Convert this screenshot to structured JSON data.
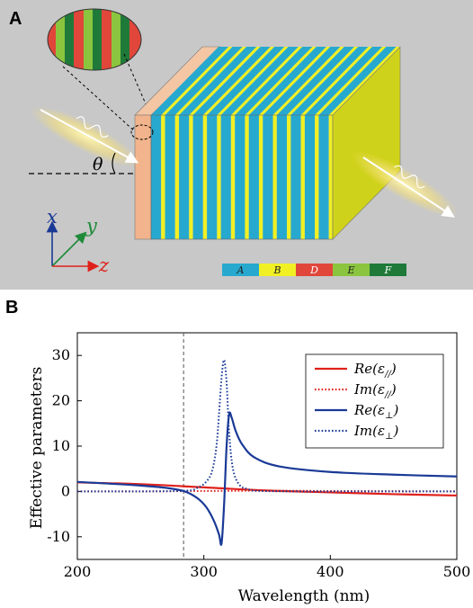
{
  "panel_a": {
    "label": "A",
    "angle_label": "θ",
    "axes": {
      "x": "x",
      "y": "y",
      "z": "z"
    },
    "legend": [
      {
        "label": "A",
        "color": "#27a9cf"
      },
      {
        "label": "B",
        "color": "#f1f024"
      },
      {
        "label": "D",
        "color": "#e0463a"
      },
      {
        "label": "E",
        "color": "#8bc53f"
      },
      {
        "label": "F",
        "color": "#1f7a3a"
      }
    ],
    "colors": {
      "background": "#c8c8c8",
      "layer_a": "#27a9cf",
      "layer_b": "#f1f024",
      "substrate": "#f2b48c",
      "exit_face": "#cfd21a"
    }
  },
  "panel_b": {
    "label": "B"
  },
  "chart_data": {
    "type": "line",
    "title": "",
    "xlabel": "Wavelength (nm)",
    "ylabel": "Effective parameters",
    "xlim": [
      200,
      500
    ],
    "ylim": [
      -15,
      35
    ],
    "xticks": [
      200,
      300,
      400,
      500
    ],
    "yticks": [
      -10,
      0,
      10,
      20,
      30
    ],
    "ytick_labels": [
      "-10",
      "0",
      "10",
      "20",
      "30"
    ],
    "vline_x": 284,
    "grid": false,
    "legend_position": "top-right",
    "series": [
      {
        "name": "Re(ε//)",
        "prefix": "Re",
        "sub": "//",
        "color": "#e0211b",
        "dash": "solid",
        "x": [
          200,
          250,
          300,
          350,
          400,
          450,
          500
        ],
        "y": [
          2.0,
          1.6,
          0.9,
          0.2,
          -0.2,
          -0.6,
          -0.9
        ]
      },
      {
        "name": "Im(ε//)",
        "prefix": "Im",
        "sub": "//",
        "color": "#e0211b",
        "dash": "dot",
        "x": [
          200,
          250,
          300,
          350,
          400,
          450,
          500
        ],
        "y": [
          0.0,
          0.0,
          0.1,
          0.15,
          0.1,
          0.05,
          0.0
        ]
      },
      {
        "name": "Re(ε⊥)",
        "prefix": "Re",
        "sub": "⊥",
        "color": "#1a3a96",
        "dash": "solid",
        "x": [
          200,
          220,
          250,
          270,
          285,
          295,
          302,
          308,
          312,
          314,
          316,
          318,
          320,
          322,
          325,
          330,
          340,
          360,
          400,
          450,
          500
        ],
        "y": [
          2.1,
          1.8,
          1.3,
          0.8,
          0.0,
          -1.5,
          -3.5,
          -6.5,
          -9.5,
          -11.5,
          -3.0,
          10.0,
          17.0,
          16.3,
          13.5,
          10.5,
          7.5,
          5.5,
          4.3,
          3.7,
          3.3
        ]
      },
      {
        "name": "Im(ε⊥)",
        "prefix": "Im",
        "sub": "⊥",
        "color": "#1a3a96",
        "dash": "dot",
        "x": [
          200,
          280,
          295,
          303,
          307,
          310,
          312,
          314,
          316,
          318,
          320,
          323,
          328,
          335,
          345,
          400,
          500
        ],
        "y": [
          0.0,
          0.1,
          0.8,
          2.5,
          5.0,
          10.0,
          17.0,
          25.0,
          29.0,
          24.0,
          13.0,
          5.0,
          1.5,
          0.5,
          0.1,
          0.0,
          0.0
        ]
      }
    ]
  }
}
